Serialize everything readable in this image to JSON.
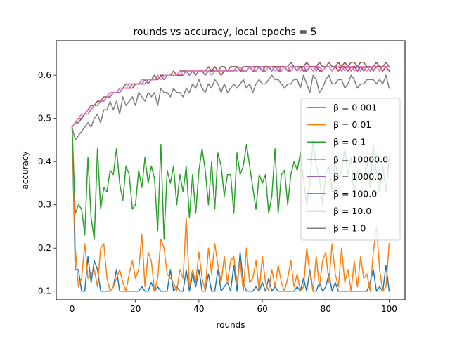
{
  "chart_data": {
    "type": "line",
    "title": "rounds vs accuracy, local epochs = 5",
    "xlabel": "rounds",
    "ylabel": "accuracy",
    "xlim": [
      -5,
      105
    ],
    "ylim": [
      0.08,
      0.68
    ],
    "xticks": [
      0,
      20,
      40,
      60,
      80,
      100
    ],
    "yticks": [
      0.1,
      0.2,
      0.3,
      0.4,
      0.5,
      0.6
    ],
    "xtick_labels": [
      "0",
      "20",
      "40",
      "60",
      "80",
      "100"
    ],
    "ytick_labels": [
      "0.1",
      "0.2",
      "0.3",
      "0.4",
      "0.5",
      "0.6"
    ],
    "grid": false,
    "legend_position": "center-right",
    "x": [
      0,
      1,
      2,
      3,
      4,
      5,
      6,
      7,
      8,
      9,
      10,
      11,
      12,
      13,
      14,
      15,
      16,
      17,
      18,
      19,
      20,
      21,
      22,
      23,
      24,
      25,
      26,
      27,
      28,
      29,
      30,
      31,
      32,
      33,
      34,
      35,
      36,
      37,
      38,
      39,
      40,
      41,
      42,
      43,
      44,
      45,
      46,
      47,
      48,
      49,
      50,
      51,
      52,
      53,
      54,
      55,
      56,
      57,
      58,
      59,
      60,
      61,
      62,
      63,
      64,
      65,
      66,
      67,
      68,
      69,
      70,
      71,
      72,
      73,
      74,
      75,
      76,
      77,
      78,
      79,
      80,
      81,
      82,
      83,
      84,
      85,
      86,
      87,
      88,
      89,
      90,
      91,
      92,
      93,
      94,
      95,
      96,
      97,
      98,
      99,
      100
    ],
    "series": [
      {
        "name": "β = 0.001",
        "color": "#1f77b4",
        "values": [
          0.48,
          0.15,
          0.15,
          0.1,
          0.1,
          0.18,
          0.12,
          0.17,
          0.15,
          0.1,
          0.1,
          0.1,
          0.1,
          0.11,
          0.15,
          0.1,
          0.1,
          0.1,
          0.1,
          0.1,
          0.1,
          0.1,
          0.11,
          0.1,
          0.1,
          0.12,
          0.1,
          0.11,
          0.1,
          0.1,
          0.1,
          0.15,
          0.1,
          0.11,
          0.1,
          0.1,
          0.15,
          0.1,
          0.14,
          0.11,
          0.15,
          0.1,
          0.1,
          0.14,
          0.1,
          0.1,
          0.15,
          0.1,
          0.11,
          0.12,
          0.1,
          0.16,
          0.1,
          0.19,
          0.12,
          0.1,
          0.1,
          0.1,
          0.11,
          0.1,
          0.12,
          0.1,
          0.13,
          0.1,
          0.11,
          0.1,
          0.1,
          0.1,
          0.1,
          0.1,
          0.1,
          0.11,
          0.1,
          0.13,
          0.1,
          0.15,
          0.1,
          0.1,
          0.12,
          0.1,
          0.11,
          0.14,
          0.1,
          0.12,
          0.1,
          0.1,
          0.1,
          0.1,
          0.1,
          0.1,
          0.1,
          0.1,
          0.1,
          0.1,
          0.12,
          0.15,
          0.1,
          0.11,
          0.1,
          0.16,
          0.1
        ]
      },
      {
        "name": "β = 0.01",
        "color": "#ff7f0e",
        "values": [
          0.48,
          0.2,
          0.11,
          0.13,
          0.21,
          0.13,
          0.14,
          0.15,
          0.11,
          0.2,
          0.21,
          0.13,
          0.1,
          0.11,
          0.13,
          0.15,
          0.12,
          0.1,
          0.14,
          0.17,
          0.13,
          0.15,
          0.23,
          0.11,
          0.19,
          0.17,
          0.1,
          0.13,
          0.22,
          0.2,
          0.14,
          0.13,
          0.12,
          0.1,
          0.15,
          0.13,
          0.27,
          0.11,
          0.15,
          0.12,
          0.19,
          0.13,
          0.1,
          0.2,
          0.14,
          0.21,
          0.16,
          0.12,
          0.18,
          0.12,
          0.17,
          0.18,
          0.12,
          0.17,
          0.1,
          0.2,
          0.12,
          0.13,
          0.17,
          0.1,
          0.18,
          0.12,
          0.1,
          0.15,
          0.11,
          0.16,
          0.12,
          0.1,
          0.13,
          0.17,
          0.11,
          0.14,
          0.1,
          0.11,
          0.2,
          0.14,
          0.1,
          0.18,
          0.11,
          0.17,
          0.19,
          0.12,
          0.21,
          0.14,
          0.11,
          0.2,
          0.12,
          0.15,
          0.1,
          0.17,
          0.11,
          0.18,
          0.13,
          0.14,
          0.1,
          0.19,
          0.25,
          0.15,
          0.1,
          0.11,
          0.21
        ]
      },
      {
        "name": "β = 0.1",
        "color": "#2ca02c",
        "values": [
          0.48,
          0.28,
          0.3,
          0.29,
          0.23,
          0.41,
          0.27,
          0.22,
          0.43,
          0.29,
          0.34,
          0.33,
          0.38,
          0.37,
          0.43,
          0.35,
          0.31,
          0.39,
          0.37,
          0.29,
          0.3,
          0.38,
          0.34,
          0.41,
          0.35,
          0.39,
          0.36,
          0.24,
          0.44,
          0.22,
          0.38,
          0.35,
          0.39,
          0.3,
          0.37,
          0.33,
          0.39,
          0.27,
          0.37,
          0.28,
          0.38,
          0.43,
          0.38,
          0.3,
          0.4,
          0.29,
          0.42,
          0.39,
          0.32,
          0.37,
          0.37,
          0.28,
          0.42,
          0.37,
          0.39,
          0.44,
          0.39,
          0.34,
          0.29,
          0.37,
          0.35,
          0.37,
          0.28,
          0.32,
          0.43,
          0.28,
          0.37,
          0.38,
          0.3,
          0.37,
          0.4,
          0.38,
          0.42,
          0.36,
          0.3,
          0.35,
          0.45,
          0.39,
          0.36,
          0.3,
          0.37,
          0.39,
          0.33,
          0.4,
          0.36,
          0.38,
          0.43,
          0.37,
          0.41,
          0.31,
          0.38,
          0.38,
          0.36,
          0.4,
          0.34,
          0.44,
          0.37,
          0.33,
          0.39,
          0.33,
          0.41
        ]
      },
      {
        "name": "β = 10000.0",
        "color": "#d62728",
        "values": [
          0.48,
          0.49,
          0.5,
          0.5,
          0.51,
          0.52,
          0.52,
          0.53,
          0.53,
          0.54,
          0.54,
          0.55,
          0.55,
          0.56,
          0.56,
          0.56,
          0.57,
          0.57,
          0.57,
          0.57,
          0.58,
          0.58,
          0.58,
          0.58,
          0.59,
          0.59,
          0.59,
          0.59,
          0.6,
          0.59,
          0.6,
          0.6,
          0.6,
          0.6,
          0.6,
          0.6,
          0.61,
          0.6,
          0.61,
          0.6,
          0.61,
          0.61,
          0.6,
          0.61,
          0.61,
          0.61,
          0.61,
          0.6,
          0.61,
          0.61,
          0.61,
          0.61,
          0.62,
          0.61,
          0.61,
          0.61,
          0.62,
          0.61,
          0.61,
          0.62,
          0.61,
          0.61,
          0.62,
          0.61,
          0.62,
          0.61,
          0.61,
          0.62,
          0.61,
          0.61,
          0.62,
          0.61,
          0.62,
          0.61,
          0.61,
          0.62,
          0.61,
          0.62,
          0.61,
          0.61,
          0.62,
          0.62,
          0.61,
          0.62,
          0.61,
          0.62,
          0.62,
          0.61,
          0.62,
          0.62,
          0.61,
          0.62,
          0.61,
          0.62,
          0.62,
          0.61,
          0.62,
          0.62,
          0.61,
          0.62,
          0.61
        ]
      },
      {
        "name": "β = 1000.0",
        "color": "#9467bd",
        "values": [
          0.48,
          0.49,
          0.5,
          0.5,
          0.51,
          0.51,
          0.52,
          0.53,
          0.53,
          0.54,
          0.54,
          0.55,
          0.55,
          0.56,
          0.56,
          0.56,
          0.57,
          0.57,
          0.57,
          0.58,
          0.58,
          0.58,
          0.58,
          0.59,
          0.58,
          0.59,
          0.59,
          0.59,
          0.6,
          0.59,
          0.6,
          0.6,
          0.6,
          0.6,
          0.61,
          0.6,
          0.61,
          0.6,
          0.61,
          0.6,
          0.61,
          0.61,
          0.6,
          0.61,
          0.61,
          0.61,
          0.61,
          0.61,
          0.61,
          0.61,
          0.61,
          0.61,
          0.62,
          0.61,
          0.61,
          0.61,
          0.62,
          0.61,
          0.62,
          0.62,
          0.61,
          0.62,
          0.62,
          0.61,
          0.62,
          0.61,
          0.62,
          0.62,
          0.61,
          0.62,
          0.62,
          0.61,
          0.62,
          0.62,
          0.61,
          0.62,
          0.62,
          0.61,
          0.62,
          0.61,
          0.62,
          0.62,
          0.61,
          0.62,
          0.62,
          0.61,
          0.62,
          0.62,
          0.61,
          0.62,
          0.62,
          0.61,
          0.62,
          0.62,
          0.61,
          0.62,
          0.62,
          0.61,
          0.62,
          0.62,
          0.62
        ]
      },
      {
        "name": "β = 100.0",
        "color": "#8c564b",
        "values": [
          0.48,
          0.49,
          0.49,
          0.5,
          0.51,
          0.52,
          0.53,
          0.53,
          0.54,
          0.54,
          0.55,
          0.55,
          0.56,
          0.56,
          0.56,
          0.57,
          0.57,
          0.58,
          0.58,
          0.58,
          0.58,
          0.58,
          0.59,
          0.59,
          0.59,
          0.59,
          0.6,
          0.59,
          0.6,
          0.6,
          0.6,
          0.6,
          0.61,
          0.6,
          0.61,
          0.61,
          0.61,
          0.61,
          0.61,
          0.61,
          0.61,
          0.61,
          0.61,
          0.62,
          0.61,
          0.62,
          0.61,
          0.62,
          0.62,
          0.61,
          0.62,
          0.62,
          0.62,
          0.61,
          0.62,
          0.62,
          0.62,
          0.62,
          0.62,
          0.62,
          0.62,
          0.62,
          0.62,
          0.62,
          0.62,
          0.62,
          0.62,
          0.62,
          0.62,
          0.63,
          0.62,
          0.62,
          0.62,
          0.62,
          0.63,
          0.62,
          0.62,
          0.62,
          0.63,
          0.62,
          0.62,
          0.63,
          0.62,
          0.62,
          0.63,
          0.62,
          0.63,
          0.62,
          0.63,
          0.63,
          0.62,
          0.63,
          0.63,
          0.62,
          0.62,
          0.62,
          0.63,
          0.62,
          0.62,
          0.63,
          0.62
        ]
      },
      {
        "name": "β = 10.0",
        "color": "#e377c2",
        "values": [
          0.48,
          0.49,
          0.5,
          0.51,
          0.51,
          0.52,
          0.52,
          0.53,
          0.53,
          0.54,
          0.54,
          0.55,
          0.56,
          0.56,
          0.56,
          0.57,
          0.57,
          0.57,
          0.58,
          0.58,
          0.58,
          0.58,
          0.59,
          0.59,
          0.59,
          0.59,
          0.59,
          0.6,
          0.59,
          0.6,
          0.6,
          0.6,
          0.6,
          0.6,
          0.61,
          0.6,
          0.61,
          0.61,
          0.61,
          0.61,
          0.61,
          0.61,
          0.61,
          0.61,
          0.6,
          0.61,
          0.61,
          0.61,
          0.61,
          0.61,
          0.61,
          0.61,
          0.61,
          0.62,
          0.61,
          0.61,
          0.62,
          0.62,
          0.61,
          0.62,
          0.62,
          0.61,
          0.62,
          0.62,
          0.61,
          0.62,
          0.61,
          0.62,
          0.62,
          0.61,
          0.62,
          0.62,
          0.61,
          0.62,
          0.62,
          0.62,
          0.61,
          0.62,
          0.62,
          0.61,
          0.62,
          0.62,
          0.61,
          0.62,
          0.62,
          0.62,
          0.61,
          0.62,
          0.62,
          0.61,
          0.62,
          0.62,
          0.62,
          0.61,
          0.62,
          0.62,
          0.62,
          0.61,
          0.62,
          0.62,
          0.62
        ]
      },
      {
        "name": "β = 1.0",
        "color": "#7f7f7f",
        "values": [
          0.48,
          0.45,
          0.46,
          0.47,
          0.48,
          0.49,
          0.48,
          0.5,
          0.51,
          0.49,
          0.52,
          0.52,
          0.54,
          0.52,
          0.54,
          0.51,
          0.55,
          0.53,
          0.54,
          0.55,
          0.53,
          0.56,
          0.55,
          0.54,
          0.56,
          0.55,
          0.56,
          0.53,
          0.57,
          0.56,
          0.56,
          0.55,
          0.57,
          0.56,
          0.56,
          0.55,
          0.57,
          0.56,
          0.58,
          0.57,
          0.59,
          0.57,
          0.56,
          0.58,
          0.57,
          0.59,
          0.58,
          0.56,
          0.58,
          0.56,
          0.57,
          0.58,
          0.57,
          0.58,
          0.59,
          0.57,
          0.58,
          0.56,
          0.58,
          0.59,
          0.58,
          0.58,
          0.59,
          0.6,
          0.59,
          0.59,
          0.58,
          0.57,
          0.58,
          0.58,
          0.59,
          0.59,
          0.57,
          0.6,
          0.58,
          0.56,
          0.6,
          0.59,
          0.56,
          0.57,
          0.59,
          0.6,
          0.58,
          0.58,
          0.59,
          0.59,
          0.57,
          0.58,
          0.6,
          0.59,
          0.57,
          0.58,
          0.58,
          0.59,
          0.59,
          0.59,
          0.58,
          0.59,
          0.58,
          0.6,
          0.57
        ]
      }
    ]
  }
}
